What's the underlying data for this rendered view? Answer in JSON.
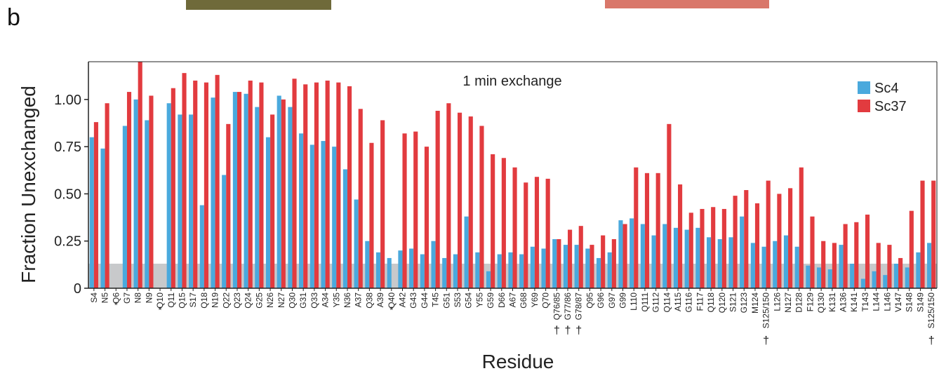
{
  "panel_label": "b",
  "chart_data": {
    "type": "bar",
    "annotation": "1 min exchange",
    "xlabel": "Residue",
    "ylabel": "Fraction Unexchanged",
    "ylim": [
      0,
      1.2
    ],
    "yticks": [
      "0",
      "0.25",
      "0.50",
      "0.75",
      "1.00"
    ],
    "ytick_values": [
      0,
      0.25,
      0.5,
      0.75,
      1.0
    ],
    "grid": false,
    "legend_position": "top-right",
    "shaded_band": {
      "y_max": 0.13,
      "color": "#c8c9cb"
    },
    "colors": {
      "Sc4": "#4aa9dd",
      "Sc37": "#e23b3f"
    },
    "categories": [
      "S4",
      "N5",
      "Q6",
      "G7",
      "N8",
      "N9",
      "Q10",
      "Q11",
      "Q15",
      "S17",
      "Q18",
      "N19",
      "Q22",
      "Q23",
      "Q24",
      "G25",
      "N26",
      "N27",
      "Q30",
      "G31",
      "Q33",
      "A34",
      "Y35",
      "N36",
      "A37",
      "Q38",
      "A39",
      "Q40",
      "A42",
      "G43",
      "G44",
      "T45",
      "G51",
      "S53",
      "G54",
      "Y55",
      "G59",
      "D66",
      "A67",
      "G68",
      "Y69",
      "Q70",
      "Q76/85",
      "G77/86",
      "G78/87",
      "Q95",
      "G96",
      "G97",
      "G99",
      "L110",
      "Q111",
      "G112",
      "Q114",
      "A115",
      "G116",
      "F117",
      "Q118",
      "Q120",
      "S121",
      "G123",
      "M124",
      "S125/150",
      "L126",
      "N127",
      "D128",
      "F129",
      "Q130",
      "K131",
      "A136",
      "K141",
      "T143",
      "L144",
      "L146",
      "V147",
      "S148",
      "S149",
      "S125/150"
    ],
    "category_markers": [
      "",
      "",
      "*",
      "",
      "",
      "",
      "*",
      "",
      "",
      "",
      "",
      "",
      "",
      "",
      "",
      "",
      "",
      "",
      "",
      "",
      "",
      "",
      "",
      "",
      "",
      "",
      "",
      "*",
      "",
      "",
      "",
      "",
      "",
      "",
      "",
      "",
      "",
      "",
      "",
      "",
      "",
      "",
      "†",
      "†",
      "†",
      "",
      "",
      "",
      "",
      "",
      "",
      "",
      "",
      "",
      "",
      "",
      "",
      "",
      "",
      "",
      "",
      "†",
      "",
      "",
      "",
      "",
      "",
      "",
      "",
      "",
      "",
      "",
      "",
      "",
      "",
      "",
      "†"
    ],
    "series": [
      {
        "name": "Sc4",
        "values": [
          0.8,
          0.74,
          null,
          0.86,
          1.0,
          0.89,
          null,
          0.98,
          0.92,
          0.92,
          0.44,
          1.01,
          0.6,
          1.04,
          1.03,
          0.96,
          0.8,
          1.02,
          0.96,
          0.82,
          0.76,
          0.78,
          0.75,
          0.63,
          0.47,
          0.25,
          0.19,
          0.16,
          0.2,
          0.21,
          0.18,
          0.25,
          0.16,
          0.18,
          0.38,
          0.19,
          0.09,
          0.18,
          0.19,
          0.18,
          0.22,
          0.21,
          0.26,
          0.23,
          0.23,
          0.21,
          0.16,
          0.19,
          0.36,
          0.37,
          0.34,
          0.28,
          0.34,
          0.32,
          0.31,
          0.32,
          0.27,
          0.26,
          0.27,
          0.38,
          0.24,
          0.22,
          0.25,
          0.28,
          0.22,
          0.12,
          0.11,
          0.1,
          0.23,
          0.13,
          0.05,
          0.09,
          0.07,
          0.13,
          0.11,
          0.19,
          0.24
        ]
      },
      {
        "name": "Sc37",
        "values": [
          0.88,
          0.98,
          null,
          1.04,
          1.2,
          1.02,
          null,
          1.06,
          1.14,
          1.1,
          1.09,
          1.13,
          0.87,
          1.04,
          1.1,
          1.09,
          0.92,
          1.0,
          1.11,
          1.08,
          1.09,
          1.1,
          1.09,
          1.07,
          0.95,
          0.77,
          0.89,
          null,
          0.82,
          0.83,
          0.75,
          0.94,
          0.98,
          0.93,
          0.91,
          0.86,
          0.71,
          0.69,
          0.64,
          0.56,
          0.59,
          0.58,
          0.26,
          0.31,
          0.33,
          0.23,
          0.28,
          0.26,
          0.34,
          0.64,
          0.61,
          0.61,
          0.87,
          0.55,
          0.4,
          0.42,
          0.43,
          0.42,
          0.49,
          0.52,
          0.45,
          0.57,
          0.5,
          0.53,
          0.64,
          0.38,
          0.25,
          0.24,
          0.34,
          0.35,
          0.39,
          0.24,
          0.23,
          0.16,
          0.41,
          0.57,
          0.57
        ]
      }
    ]
  }
}
